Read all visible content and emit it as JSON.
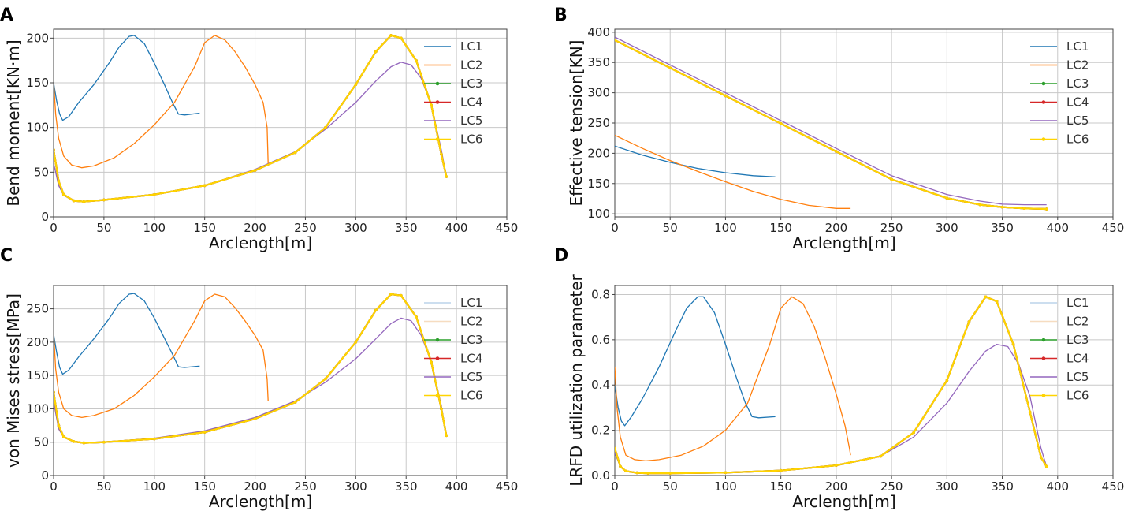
{
  "chart_data": [
    {
      "panel": "A",
      "type": "line",
      "xlabel": "Arclength[m]",
      "ylabel": "Bend moment[KN·m]",
      "xlim": [
        0,
        450
      ],
      "ylim": [
        0,
        210
      ],
      "xticks": [
        0,
        50,
        100,
        150,
        200,
        250,
        300,
        350,
        400,
        450
      ],
      "yticks": [
        0,
        50,
        100,
        150,
        200
      ],
      "grid": true,
      "legend": "top-right",
      "series": [
        {
          "name": "LC1",
          "color": "#1f77b4",
          "marker": "none",
          "x": [
            0,
            3,
            6,
            9,
            15,
            25,
            40,
            55,
            65,
            75,
            80,
            90,
            100,
            110,
            118,
            124,
            130,
            145
          ],
          "y": [
            150,
            130,
            115,
            108,
            112,
            128,
            148,
            172,
            190,
            202,
            203,
            194,
            172,
            148,
            128,
            115,
            114,
            116
          ]
        },
        {
          "name": "LC2",
          "color": "#ff7f0e",
          "marker": "none",
          "x": [
            0,
            2,
            5,
            10,
            18,
            28,
            40,
            60,
            80,
            100,
            120,
            140,
            150,
            160,
            170,
            180,
            190,
            200,
            208,
            212,
            213
          ],
          "y": [
            152,
            115,
            88,
            68,
            58,
            55,
            57,
            66,
            82,
            103,
            128,
            168,
            195,
            203,
            198,
            185,
            168,
            148,
            128,
            100,
            60
          ]
        },
        {
          "name": "LC3",
          "color": "#2ca02c",
          "marker": "dot",
          "x": [
            0,
            5,
            10,
            20,
            30,
            50,
            100,
            150,
            200,
            240,
            270,
            300,
            320,
            335,
            345,
            360,
            375,
            385,
            390
          ],
          "y": [
            75,
            40,
            25,
            18,
            17,
            19,
            25,
            35,
            52,
            72,
            100,
            148,
            185,
            203,
            200,
            175,
            125,
            70,
            45
          ]
        },
        {
          "name": "LC4",
          "color": "#d62728",
          "marker": "dot",
          "x": [
            0,
            5,
            10,
            20,
            30,
            50,
            100,
            150,
            200,
            240,
            270,
            300,
            320,
            335,
            345,
            360,
            375,
            385,
            390
          ],
          "y": [
            75,
            40,
            25,
            18,
            17,
            19,
            25,
            35,
            52,
            72,
            100,
            148,
            185,
            203,
            200,
            175,
            125,
            70,
            45
          ]
        },
        {
          "name": "LC5",
          "color": "#9467bd",
          "marker": "none",
          "x": [
            0,
            5,
            10,
            20,
            30,
            50,
            100,
            150,
            200,
            240,
            270,
            300,
            320,
            335,
            345,
            355,
            365,
            375,
            385,
            390
          ],
          "y": [
            60,
            35,
            24,
            18,
            17,
            19,
            25,
            35,
            53,
            73,
            98,
            128,
            152,
            168,
            173,
            170,
            155,
            125,
            75,
            45
          ]
        },
        {
          "name": "LC6",
          "color": "#ffd400",
          "marker": "dot",
          "x": [
            0,
            5,
            10,
            20,
            30,
            50,
            100,
            150,
            200,
            240,
            270,
            300,
            320,
            335,
            345,
            360,
            375,
            385,
            390
          ],
          "y": [
            75,
            40,
            25,
            18,
            17,
            19,
            25,
            35,
            52,
            72,
            100,
            148,
            185,
            203,
            200,
            175,
            125,
            70,
            45
          ]
        }
      ]
    },
    {
      "panel": "B",
      "type": "line",
      "xlabel": "Arclength[m]",
      "ylabel": "Effective tension[KN]",
      "xlim": [
        0,
        450
      ],
      "ylim": [
        95,
        405
      ],
      "xticks": [
        0,
        50,
        100,
        150,
        200,
        250,
        300,
        350,
        400,
        450
      ],
      "yticks": [
        100,
        150,
        200,
        250,
        300,
        350,
        400
      ],
      "grid": true,
      "legend": "top-right",
      "series": [
        {
          "name": "LC1",
          "color": "#1f77b4",
          "marker": "none",
          "x": [
            0,
            25,
            50,
            75,
            100,
            125,
            145
          ],
          "y": [
            212,
            197,
            185,
            175,
            168,
            163,
            161
          ]
        },
        {
          "name": "LC2",
          "color": "#ff7f0e",
          "marker": "none",
          "x": [
            0,
            25,
            50,
            75,
            100,
            125,
            150,
            175,
            200,
            213
          ],
          "y": [
            230,
            208,
            188,
            170,
            153,
            137,
            124,
            114,
            109,
            109
          ]
        },
        {
          "name": "LC3",
          "color": "#2ca02c",
          "marker": "dot",
          "x": [
            0,
            50,
            100,
            150,
            200,
            250,
            300,
            330,
            350,
            370,
            390
          ],
          "y": [
            387,
            341,
            295,
            249,
            203,
            157,
            126,
            115,
            111,
            109,
            108
          ]
        },
        {
          "name": "LC4",
          "color": "#d62728",
          "marker": "dot",
          "x": [
            0,
            50,
            100,
            150,
            200,
            250,
            300,
            330,
            350,
            370,
            390
          ],
          "y": [
            387,
            341,
            295,
            249,
            203,
            157,
            126,
            115,
            111,
            109,
            108
          ]
        },
        {
          "name": "LC5",
          "color": "#9467bd",
          "marker": "none",
          "x": [
            0,
            50,
            100,
            150,
            200,
            250,
            300,
            330,
            350,
            370,
            390
          ],
          "y": [
            392,
            346,
            300,
            254,
            208,
            163,
            132,
            121,
            116,
            115,
            115
          ]
        },
        {
          "name": "LC6",
          "color": "#ffd400",
          "marker": "dot",
          "x": [
            0,
            50,
            100,
            150,
            200,
            250,
            300,
            330,
            350,
            370,
            390
          ],
          "y": [
            387,
            341,
            295,
            249,
            203,
            157,
            126,
            115,
            111,
            109,
            108
          ]
        }
      ]
    },
    {
      "panel": "C",
      "type": "line",
      "xlabel": "Arclength[m]",
      "ylabel": "von Mises stress[MPa]",
      "xlim": [
        0,
        450
      ],
      "ylim": [
        0,
        285
      ],
      "xticks": [
        0,
        50,
        100,
        150,
        200,
        250,
        300,
        350,
        400,
        450
      ],
      "yticks": [
        0,
        50,
        100,
        150,
        200,
        250
      ],
      "grid": true,
      "legend": "top-right",
      "series": [
        {
          "name": "LC1",
          "color": "#1f77b4",
          "marker": "none",
          "x": [
            0,
            3,
            6,
            9,
            15,
            25,
            40,
            55,
            65,
            75,
            80,
            90,
            100,
            110,
            118,
            124,
            130,
            145
          ],
          "y": [
            212,
            185,
            162,
            152,
            158,
            178,
            205,
            235,
            258,
            272,
            273,
            262,
            236,
            206,
            182,
            163,
            162,
            164
          ]
        },
        {
          "name": "LC2",
          "color": "#ff7f0e",
          "marker": "none",
          "x": [
            0,
            2,
            5,
            10,
            18,
            28,
            40,
            60,
            80,
            100,
            120,
            140,
            150,
            160,
            170,
            180,
            190,
            200,
            208,
            212,
            213
          ],
          "y": [
            215,
            160,
            125,
            100,
            90,
            87,
            90,
            100,
            120,
            148,
            180,
            232,
            262,
            272,
            268,
            252,
            232,
            210,
            188,
            145,
            112
          ]
        },
        {
          "name": "LC3",
          "color": "#2ca02c",
          "marker": "dot",
          "x": [
            0,
            5,
            10,
            20,
            30,
            50,
            100,
            150,
            200,
            240,
            270,
            300,
            320,
            335,
            345,
            360,
            375,
            385,
            390
          ],
          "y": [
            125,
            75,
            58,
            51,
            49,
            50,
            55,
            65,
            85,
            110,
            145,
            200,
            248,
            272,
            270,
            238,
            170,
            100,
            60
          ]
        },
        {
          "name": "LC4",
          "color": "#d62728",
          "marker": "dot",
          "x": [
            0,
            5,
            10,
            20,
            30,
            50,
            100,
            150,
            200,
            240,
            270,
            300,
            320,
            335,
            345,
            360,
            375,
            385,
            390
          ],
          "y": [
            125,
            75,
            58,
            51,
            49,
            50,
            55,
            65,
            85,
            110,
            145,
            200,
            248,
            272,
            270,
            238,
            170,
            100,
            60
          ]
        },
        {
          "name": "LC5",
          "color": "#9467bd",
          "marker": "none",
          "x": [
            0,
            5,
            10,
            20,
            30,
            50,
            100,
            150,
            200,
            240,
            270,
            300,
            320,
            335,
            345,
            355,
            365,
            375,
            385,
            390
          ],
          "y": [
            110,
            70,
            57,
            51,
            49,
            50,
            56,
            67,
            87,
            112,
            140,
            175,
            205,
            228,
            236,
            232,
            210,
            170,
            105,
            60
          ]
        },
        {
          "name": "LC6",
          "color": "#ffd400",
          "marker": "dot",
          "x": [
            0,
            5,
            10,
            20,
            30,
            50,
            100,
            150,
            200,
            240,
            270,
            300,
            320,
            335,
            345,
            360,
            375,
            385,
            390
          ],
          "y": [
            125,
            75,
            58,
            51,
            49,
            50,
            55,
            65,
            85,
            110,
            145,
            200,
            248,
            272,
            270,
            238,
            170,
            100,
            60
          ]
        }
      ]
    },
    {
      "panel": "D",
      "type": "line",
      "xlabel": "Arclength[m]",
      "ylabel": "LRFD utilization parameter",
      "xlim": [
        0,
        450
      ],
      "ylim": [
        0,
        0.84
      ],
      "xticks": [
        0,
        50,
        100,
        150,
        200,
        250,
        300,
        350,
        400,
        450
      ],
      "yticks": [
        0.0,
        0.2,
        0.4,
        0.6,
        0.8
      ],
      "grid": true,
      "legend": "top-right",
      "series": [
        {
          "name": "LC1",
          "color": "#1f77b4",
          "marker": "none",
          "x": [
            0,
            3,
            6,
            9,
            15,
            25,
            40,
            55,
            65,
            75,
            80,
            90,
            100,
            110,
            118,
            124,
            130,
            145
          ],
          "y": [
            0.4,
            0.3,
            0.24,
            0.22,
            0.26,
            0.34,
            0.48,
            0.64,
            0.74,
            0.79,
            0.79,
            0.72,
            0.58,
            0.43,
            0.32,
            0.26,
            0.255,
            0.26
          ]
        },
        {
          "name": "LC2",
          "color": "#ff7f0e",
          "marker": "none",
          "x": [
            0,
            2,
            5,
            10,
            18,
            28,
            40,
            60,
            80,
            100,
            120,
            140,
            150,
            160,
            170,
            180,
            190,
            200,
            208,
            212,
            213
          ],
          "y": [
            0.48,
            0.3,
            0.17,
            0.09,
            0.07,
            0.065,
            0.07,
            0.09,
            0.13,
            0.2,
            0.32,
            0.58,
            0.74,
            0.79,
            0.76,
            0.66,
            0.52,
            0.36,
            0.22,
            0.12,
            0.09
          ]
        },
        {
          "name": "LC3",
          "color": "#2ca02c",
          "marker": "dot",
          "x": [
            0,
            5,
            10,
            20,
            30,
            50,
            100,
            150,
            200,
            240,
            270,
            300,
            320,
            335,
            345,
            360,
            375,
            385,
            390
          ],
          "y": [
            0.12,
            0.04,
            0.02,
            0.012,
            0.01,
            0.01,
            0.013,
            0.022,
            0.045,
            0.085,
            0.19,
            0.42,
            0.68,
            0.79,
            0.77,
            0.58,
            0.28,
            0.08,
            0.04
          ]
        },
        {
          "name": "LC4",
          "color": "#d62728",
          "marker": "dot",
          "x": [
            0,
            5,
            10,
            20,
            30,
            50,
            100,
            150,
            200,
            240,
            270,
            300,
            320,
            335,
            345,
            360,
            375,
            385,
            390
          ],
          "y": [
            0.12,
            0.04,
            0.02,
            0.012,
            0.01,
            0.01,
            0.013,
            0.022,
            0.045,
            0.085,
            0.19,
            0.42,
            0.68,
            0.79,
            0.77,
            0.58,
            0.28,
            0.08,
            0.04
          ]
        },
        {
          "name": "LC5",
          "color": "#9467bd",
          "marker": "none",
          "x": [
            0,
            5,
            10,
            20,
            30,
            50,
            100,
            150,
            200,
            240,
            270,
            300,
            320,
            335,
            345,
            355,
            365,
            375,
            385,
            390
          ],
          "y": [
            0.1,
            0.04,
            0.02,
            0.012,
            0.01,
            0.01,
            0.013,
            0.022,
            0.045,
            0.085,
            0.17,
            0.32,
            0.46,
            0.55,
            0.58,
            0.57,
            0.49,
            0.35,
            0.12,
            0.04
          ]
        },
        {
          "name": "LC6",
          "color": "#ffd400",
          "marker": "dot",
          "x": [
            0,
            5,
            10,
            20,
            30,
            50,
            100,
            150,
            200,
            240,
            270,
            300,
            320,
            335,
            345,
            360,
            375,
            385,
            390
          ],
          "y": [
            0.12,
            0.04,
            0.02,
            0.012,
            0.01,
            0.01,
            0.013,
            0.022,
            0.045,
            0.085,
            0.19,
            0.42,
            0.68,
            0.79,
            0.77,
            0.58,
            0.28,
            0.08,
            0.04
          ]
        }
      ]
    }
  ]
}
